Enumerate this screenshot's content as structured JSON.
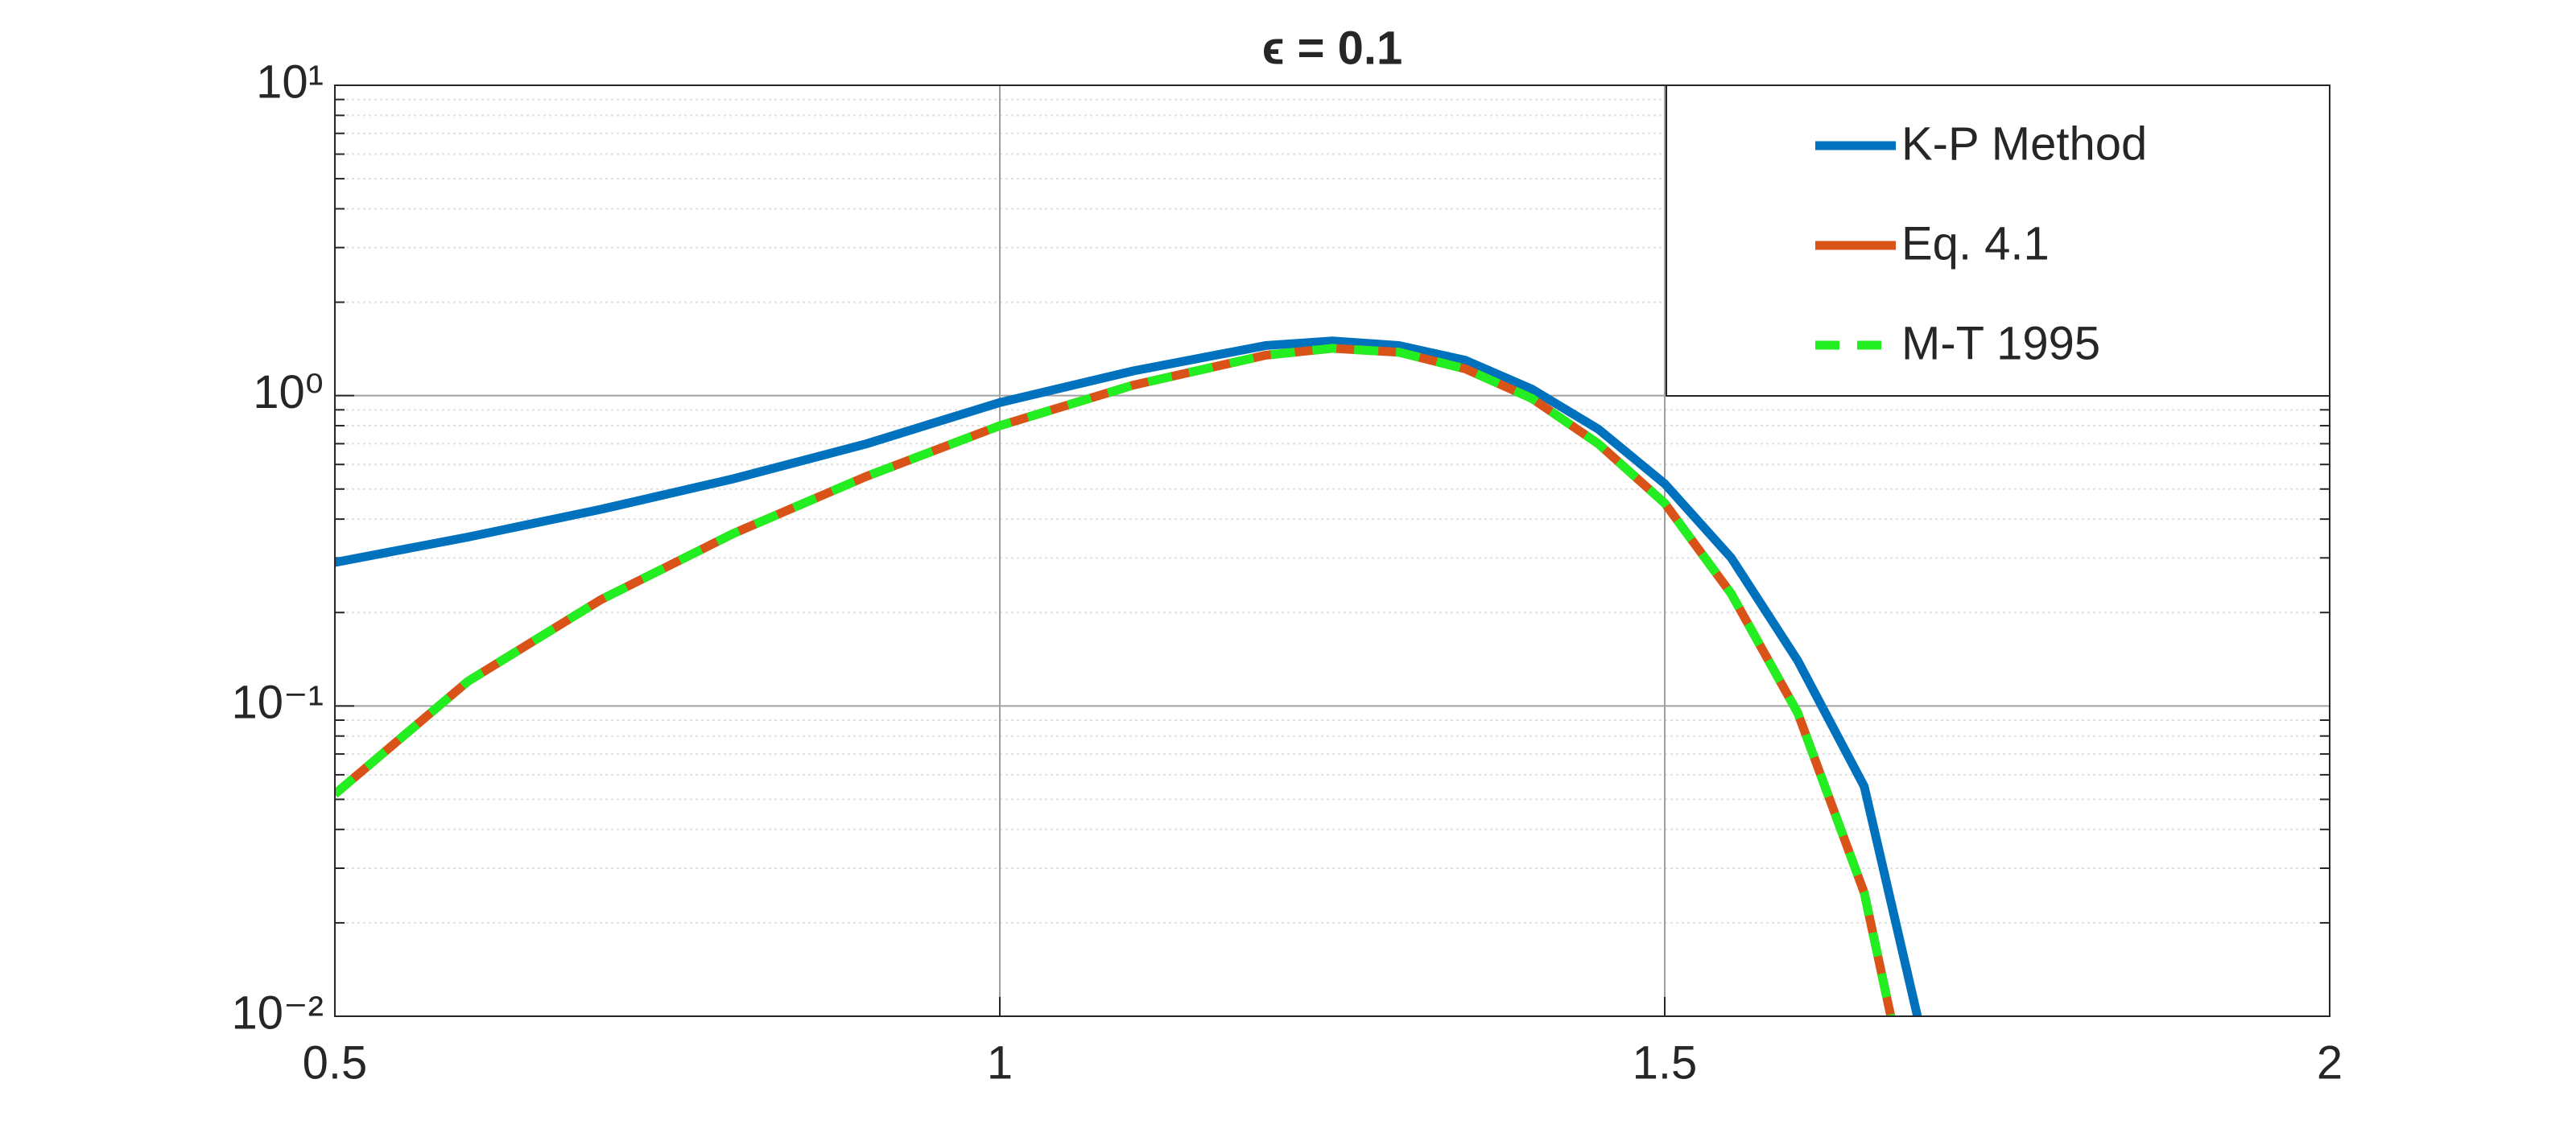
{
  "chart_data": {
    "type": "line",
    "title": "ϵ = 0.1",
    "xlim": [
      0.5,
      2
    ],
    "xticks": [
      0.5,
      1,
      1.5,
      2
    ],
    "ylim": [
      0.01,
      10
    ],
    "yscale": "log",
    "yticks": [
      {
        "value": 0.01,
        "label": "10⁻²"
      },
      {
        "value": 0.1,
        "label": "10⁻¹"
      },
      {
        "value": 1,
        "label": "10⁰"
      },
      {
        "value": 10,
        "label": "10¹"
      }
    ],
    "grid": true,
    "minor_grid": true,
    "legend": "upper right",
    "series": [
      {
        "name": "K-P Method",
        "color": "#0072bd",
        "dash": "solid",
        "x": [
          0.5,
          0.6,
          0.7,
          0.8,
          0.9,
          1.0,
          1.1,
          1.2,
          1.25,
          1.3,
          1.35,
          1.4,
          1.45,
          1.5,
          1.55,
          1.6,
          1.65,
          1.69
        ],
        "values": [
          0.29,
          0.35,
          0.43,
          0.54,
          0.7,
          0.95,
          1.2,
          1.45,
          1.5,
          1.45,
          1.3,
          1.05,
          0.78,
          0.52,
          0.3,
          0.14,
          0.055,
          0.01
        ]
      },
      {
        "name": "Eq. 4.1",
        "color": "#d95319",
        "dash": "solid",
        "x": [
          0.5,
          0.6,
          0.7,
          0.8,
          0.9,
          1.0,
          1.1,
          1.2,
          1.25,
          1.3,
          1.35,
          1.4,
          1.45,
          1.5,
          1.55,
          1.6,
          1.65,
          1.67
        ],
        "values": [
          0.052,
          0.12,
          0.22,
          0.36,
          0.55,
          0.8,
          1.08,
          1.35,
          1.42,
          1.38,
          1.22,
          0.98,
          0.7,
          0.45,
          0.23,
          0.095,
          0.025,
          0.01
        ]
      },
      {
        "name": "M-T 1995",
        "color": "#22ee22",
        "dash": "dashed",
        "x": [
          0.5,
          0.6,
          0.7,
          0.8,
          0.9,
          1.0,
          1.1,
          1.2,
          1.25,
          1.3,
          1.35,
          1.4,
          1.45,
          1.5,
          1.55,
          1.6,
          1.65,
          1.67
        ],
        "values": [
          0.052,
          0.12,
          0.22,
          0.36,
          0.55,
          0.8,
          1.08,
          1.35,
          1.42,
          1.38,
          1.22,
          0.98,
          0.7,
          0.45,
          0.23,
          0.095,
          0.025,
          0.01
        ]
      }
    ]
  }
}
